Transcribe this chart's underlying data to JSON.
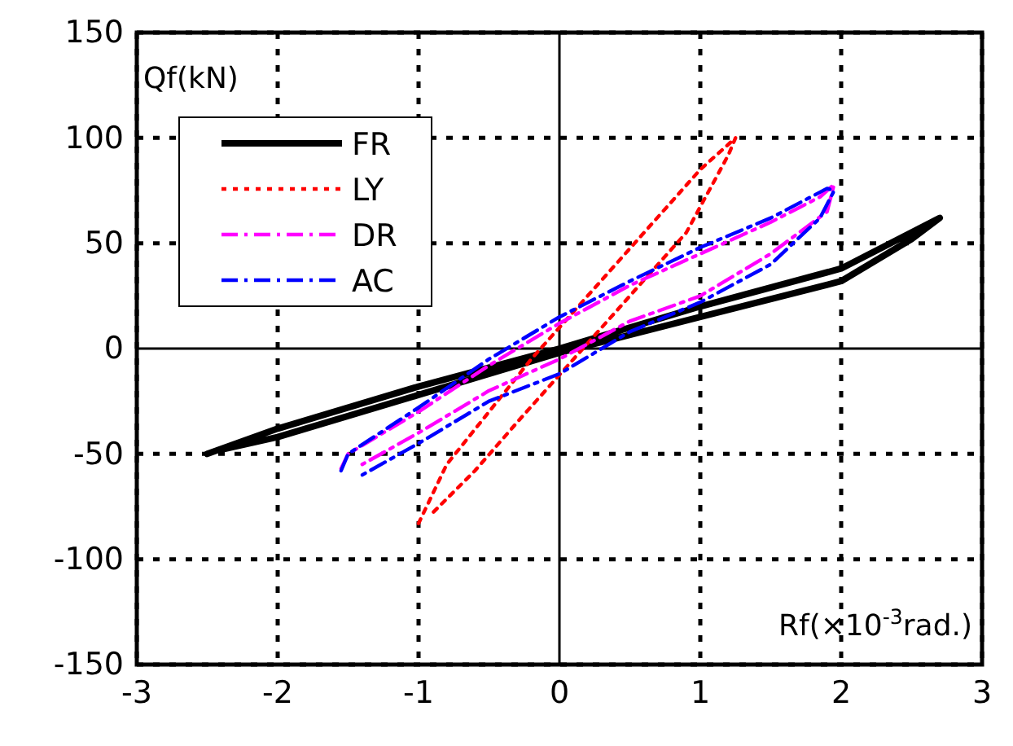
{
  "chart_data": {
    "type": "line",
    "xlabel": "Rf(×10$^{-3}$rad.)",
    "ylabel": "Qf(kN)",
    "xlim": [
      -3,
      3
    ],
    "ylim": [
      -150,
      150
    ],
    "xticks": [
      -3,
      -2,
      -1,
      0,
      1,
      2,
      3
    ],
    "yticks": [
      -150,
      -100,
      -50,
      0,
      50,
      100,
      150
    ],
    "grid": true,
    "legend": "top left",
    "marker": "none",
    "series": [
      {
        "name": "FR",
        "color": "#000000",
        "line_style": "solid",
        "x": [
          -2.5,
          -2,
          -1,
          0,
          1,
          2,
          2.7,
          2.5,
          2,
          1,
          0,
          -1,
          -2,
          -2.4
        ],
        "values": [
          -50,
          -38,
          -18,
          0,
          20,
          38,
          62,
          52,
          32,
          15,
          -2,
          -22,
          -42,
          -48
        ]
      },
      {
        "name": "LY",
        "color": "#ff0000",
        "line_style": "dotted",
        "x": [
          -1,
          -0.8,
          -0.5,
          -0.2,
          0.2,
          0.6,
          1,
          1.25,
          1.2,
          0.9,
          0.5,
          0.1,
          -0.3,
          -0.6,
          -0.9
        ],
        "values": [
          -83,
          -55,
          -30,
          -5,
          25,
          55,
          85,
          100,
          92,
          55,
          25,
          -5,
          -35,
          -58,
          -78
        ]
      },
      {
        "name": "DR",
        "color": "#ff00ff",
        "line_style": "dashed",
        "x": [
          -1.55,
          -1.5,
          -1,
          -0.5,
          0,
          0.5,
          1,
          1.5,
          1.85,
          1.95,
          1.9,
          1.5,
          1,
          0.5,
          0,
          -0.5,
          -1,
          -1.4
        ],
        "values": [
          -57,
          -50,
          -30,
          -8,
          12,
          30,
          45,
          60,
          72,
          78,
          65,
          45,
          25,
          13,
          -5,
          -20,
          -40,
          -55
        ]
      },
      {
        "name": "AC",
        "color": "#0000ff",
        "line_style": "dashed",
        "x": [
          -1.55,
          -1.5,
          -1,
          -0.5,
          0,
          0.5,
          1,
          1.5,
          1.9,
          1.95,
          1.85,
          1.5,
          1,
          0.5,
          0,
          -0.5,
          -1,
          -1.4
        ],
        "values": [
          -58,
          -50,
          -28,
          -5,
          15,
          32,
          48,
          62,
          76,
          75,
          62,
          40,
          22,
          8,
          -12,
          -25,
          -45,
          -60
        ]
      }
    ]
  }
}
